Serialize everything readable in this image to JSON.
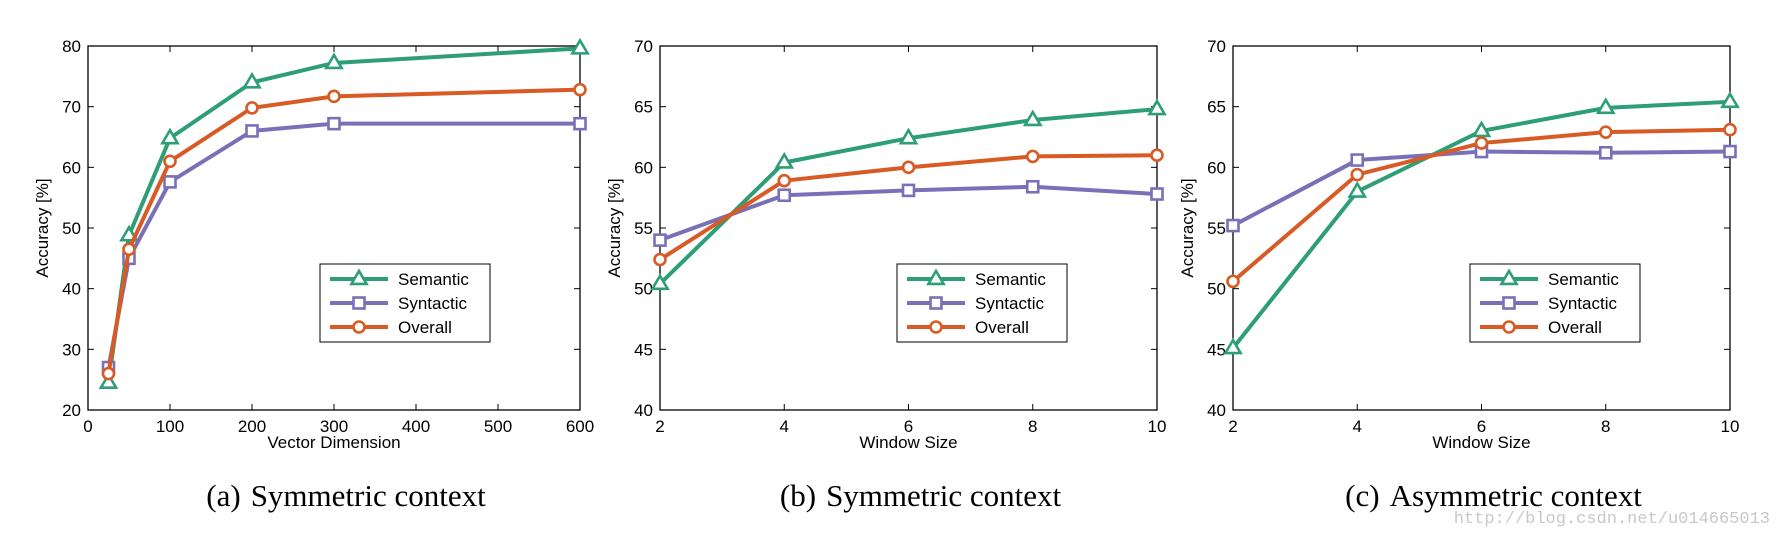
{
  "chart_data": [
    {
      "type": "line",
      "caption_label": "(a)",
      "caption_text": "Symmetric context",
      "xlabel": "Vector Dimension",
      "ylabel": "Accuracy [%]",
      "xlim": [
        0,
        600
      ],
      "ylim": [
        20,
        80
      ],
      "xticks": [
        0,
        100,
        200,
        300,
        400,
        500,
        600
      ],
      "yticks": [
        20,
        30,
        40,
        50,
        60,
        70,
        80
      ],
      "legend_position": "lower-right",
      "x": [
        25,
        50,
        100,
        200,
        300,
        600
      ],
      "series": [
        {
          "name": "Semantic",
          "marker": "triangle",
          "color": "#2e9e76",
          "values": [
            24.5,
            48.8,
            64.8,
            74.0,
            77.2,
            79.6
          ]
        },
        {
          "name": "Syntactic",
          "marker": "square",
          "color": "#7a70b8",
          "values": [
            27.0,
            45.0,
            57.6,
            66.0,
            67.2,
            67.2
          ]
        },
        {
          "name": "Overall",
          "marker": "circle",
          "color": "#d85a24",
          "values": [
            26.0,
            46.5,
            61.0,
            69.8,
            71.7,
            72.8
          ]
        }
      ]
    },
    {
      "type": "line",
      "caption_label": "(b)",
      "caption_text": "Symmetric context",
      "xlabel": "Window Size",
      "ylabel": "Accuracy [%]",
      "xlim": [
        2,
        10
      ],
      "ylim": [
        40,
        70
      ],
      "xticks": [
        2,
        4,
        6,
        8,
        10
      ],
      "yticks": [
        40,
        45,
        50,
        55,
        60,
        65,
        70
      ],
      "legend_position": "lower-right",
      "x": [
        2,
        4,
        6,
        8,
        10
      ],
      "series": [
        {
          "name": "Semantic",
          "marker": "triangle",
          "color": "#2e9e76",
          "values": [
            50.4,
            60.4,
            62.4,
            63.9,
            64.8
          ]
        },
        {
          "name": "Syntactic",
          "marker": "square",
          "color": "#7a70b8",
          "values": [
            54.0,
            57.7,
            58.1,
            58.4,
            57.8
          ]
        },
        {
          "name": "Overall",
          "marker": "circle",
          "color": "#d85a24",
          "values": [
            52.4,
            58.9,
            60.0,
            60.9,
            61.0
          ]
        }
      ]
    },
    {
      "type": "line",
      "caption_label": "(c)",
      "caption_text": "Asymmetric context",
      "xlabel": "Window Size",
      "ylabel": "Accuracy [%]",
      "xlim": [
        2,
        10
      ],
      "ylim": [
        40,
        70
      ],
      "xticks": [
        2,
        4,
        6,
        8,
        10
      ],
      "yticks": [
        40,
        45,
        50,
        55,
        60,
        65,
        70
      ],
      "legend_position": "lower-right",
      "x": [
        2,
        4,
        6,
        8,
        10
      ],
      "series": [
        {
          "name": "Semantic",
          "marker": "triangle",
          "color": "#2e9e76",
          "values": [
            45.1,
            58.0,
            63.0,
            64.9,
            65.4
          ]
        },
        {
          "name": "Syntactic",
          "marker": "square",
          "color": "#7a70b8",
          "values": [
            55.2,
            60.6,
            61.3,
            61.2,
            61.3
          ]
        },
        {
          "name": "Overall",
          "marker": "circle",
          "color": "#d85a24",
          "values": [
            50.6,
            59.4,
            62.0,
            62.9,
            63.1
          ]
        }
      ]
    }
  ],
  "watermark": "http://blog.csdn.net/u014665013"
}
